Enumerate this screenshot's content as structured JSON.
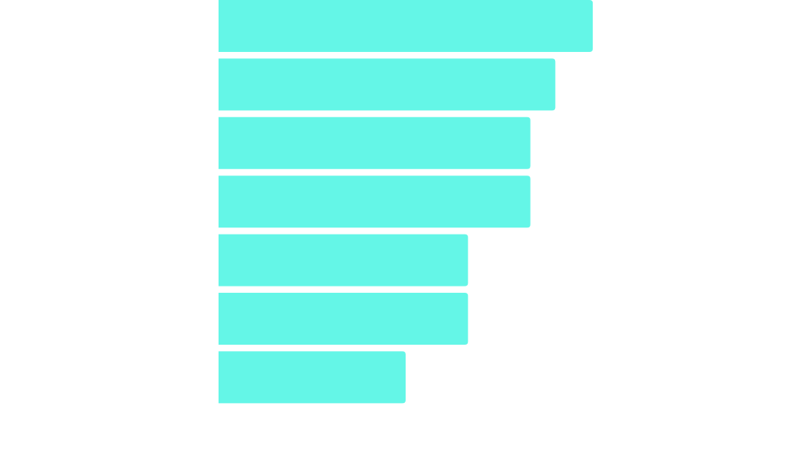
{
  "chart_data": {
    "type": "bar",
    "orientation": "horizontal",
    "values": [
      6,
      5.4,
      5,
      5,
      4,
      4,
      3
    ],
    "color": "#64f6e7",
    "xlim": [
      0,
      6
    ]
  }
}
